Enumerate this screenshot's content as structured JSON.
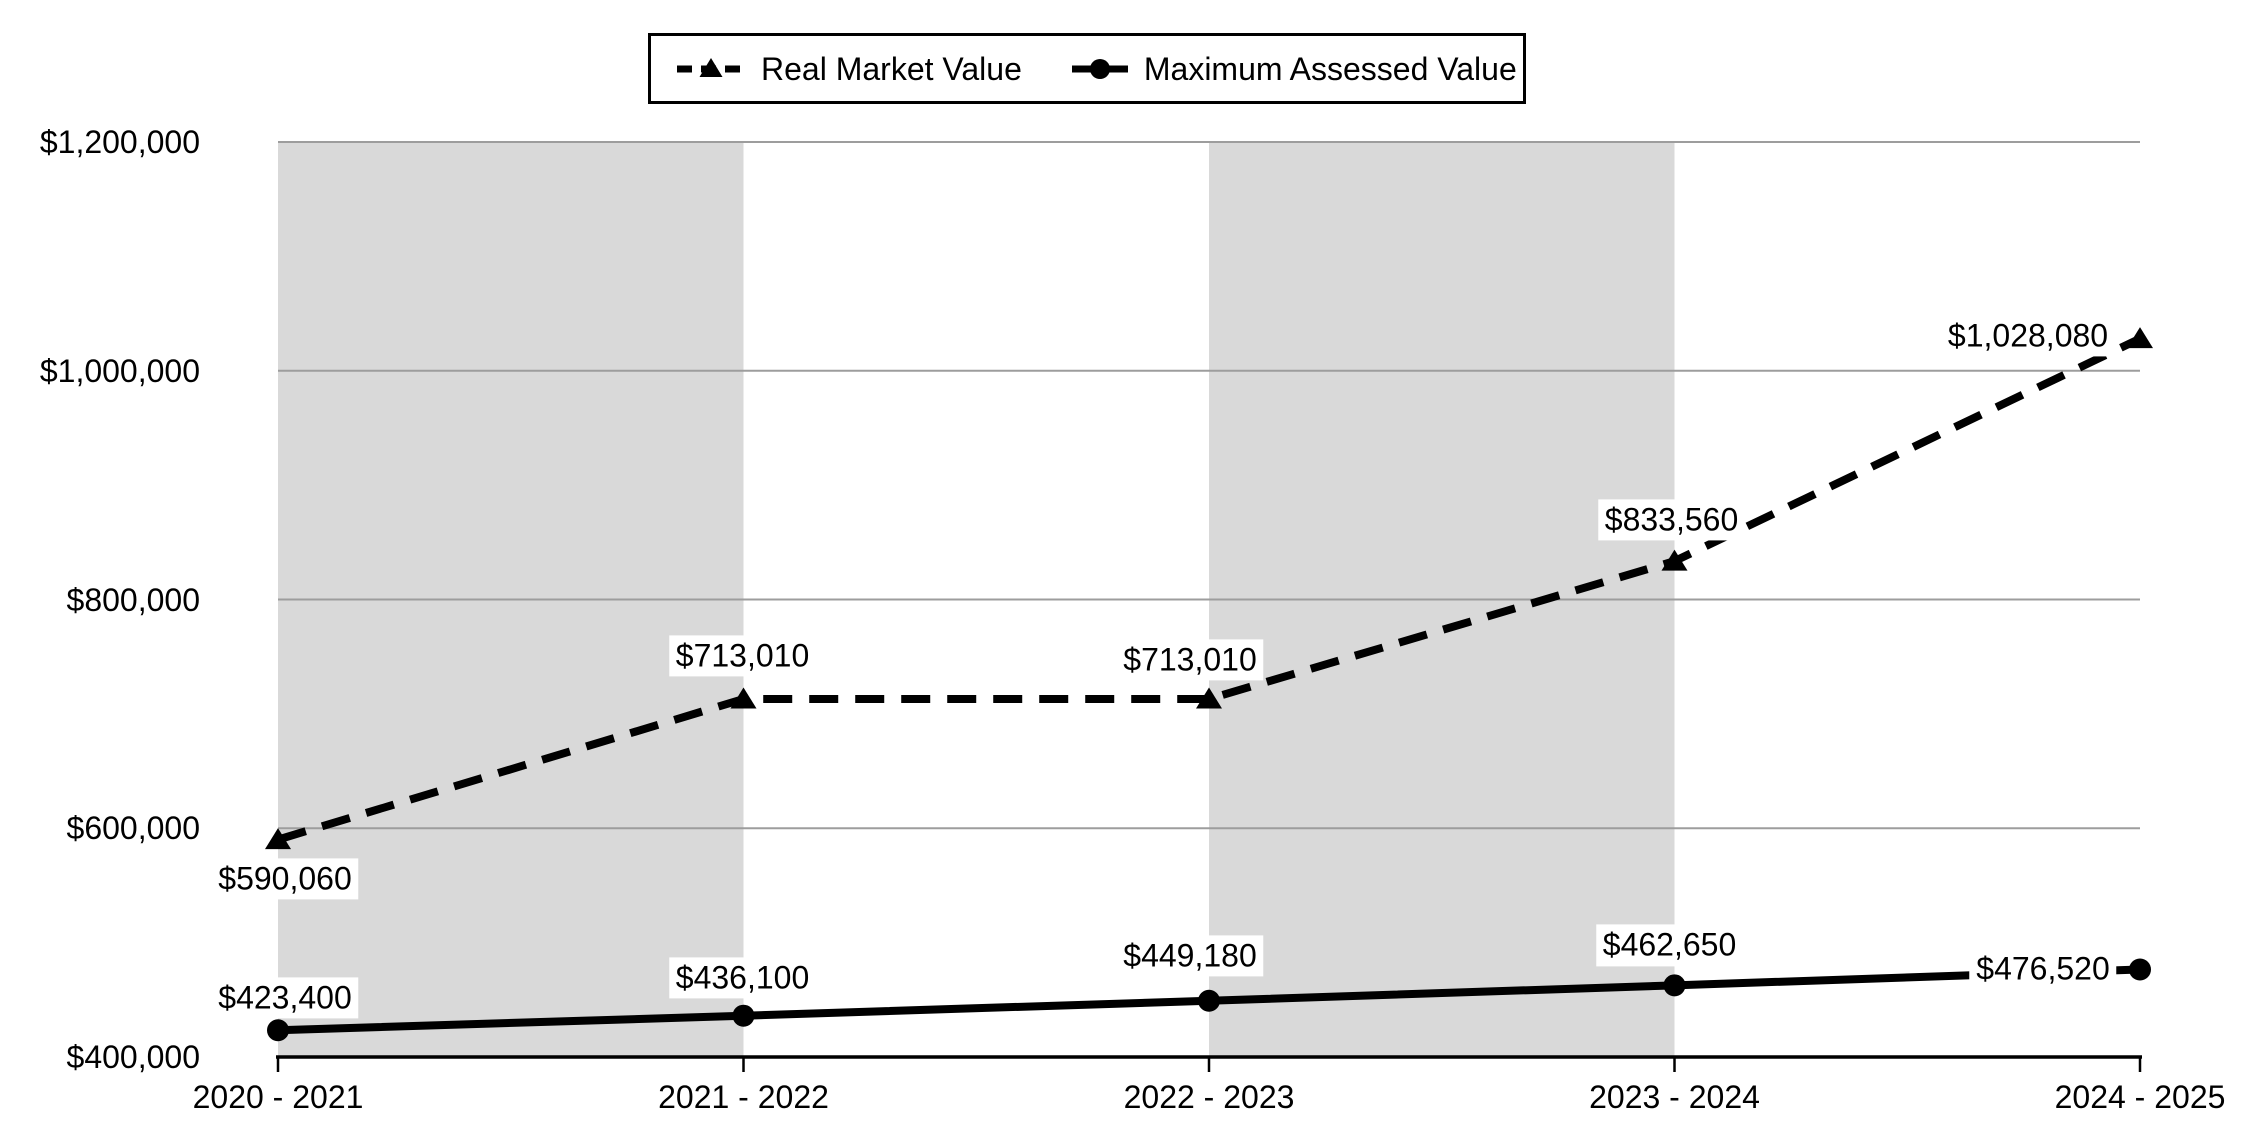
{
  "chart_data": {
    "type": "line",
    "title": "",
    "categories": [
      "2020 - 2021",
      "2021 - 2022",
      "2022 - 2023",
      "2023 - 2024",
      "2024 - 2025"
    ],
    "series": [
      {
        "name": "Real Market Value",
        "line_style": "dashed",
        "marker": "triangle",
        "values": [
          590060,
          713010,
          713010,
          833560,
          1028080
        ],
        "labels": [
          "$590,060",
          "$713,010",
          "$713,010",
          "$833,560",
          "$1,028,080"
        ]
      },
      {
        "name": "Maximum Assessed Value",
        "line_style": "solid",
        "marker": "circle",
        "values": [
          423400,
          436100,
          449180,
          462650,
          476520
        ],
        "labels": [
          "$423,400",
          "$436,100",
          "$449,180",
          "$462,650",
          "$476,520"
        ]
      }
    ],
    "y_axis": {
      "min": 400000,
      "max": 1200000,
      "tick_interval": 200000,
      "tick_labels": [
        "$400,000",
        "$600,000",
        "$800,000",
        "$1,000,000",
        "$1,200,000"
      ]
    },
    "x_axis": {
      "label": ""
    },
    "ylabel": "",
    "xlabel": "",
    "grid": true,
    "legend_position": "top",
    "plot_bands": {
      "shaded_intervals": [
        [
          0,
          1
        ],
        [
          2,
          3
        ]
      ],
      "color": "#d9d9d9"
    }
  },
  "colors": {
    "series": "#000000",
    "gridline": "#9d9d9d",
    "band": "#d9d9d9",
    "axis": "#000000",
    "background": "#ffffff"
  }
}
